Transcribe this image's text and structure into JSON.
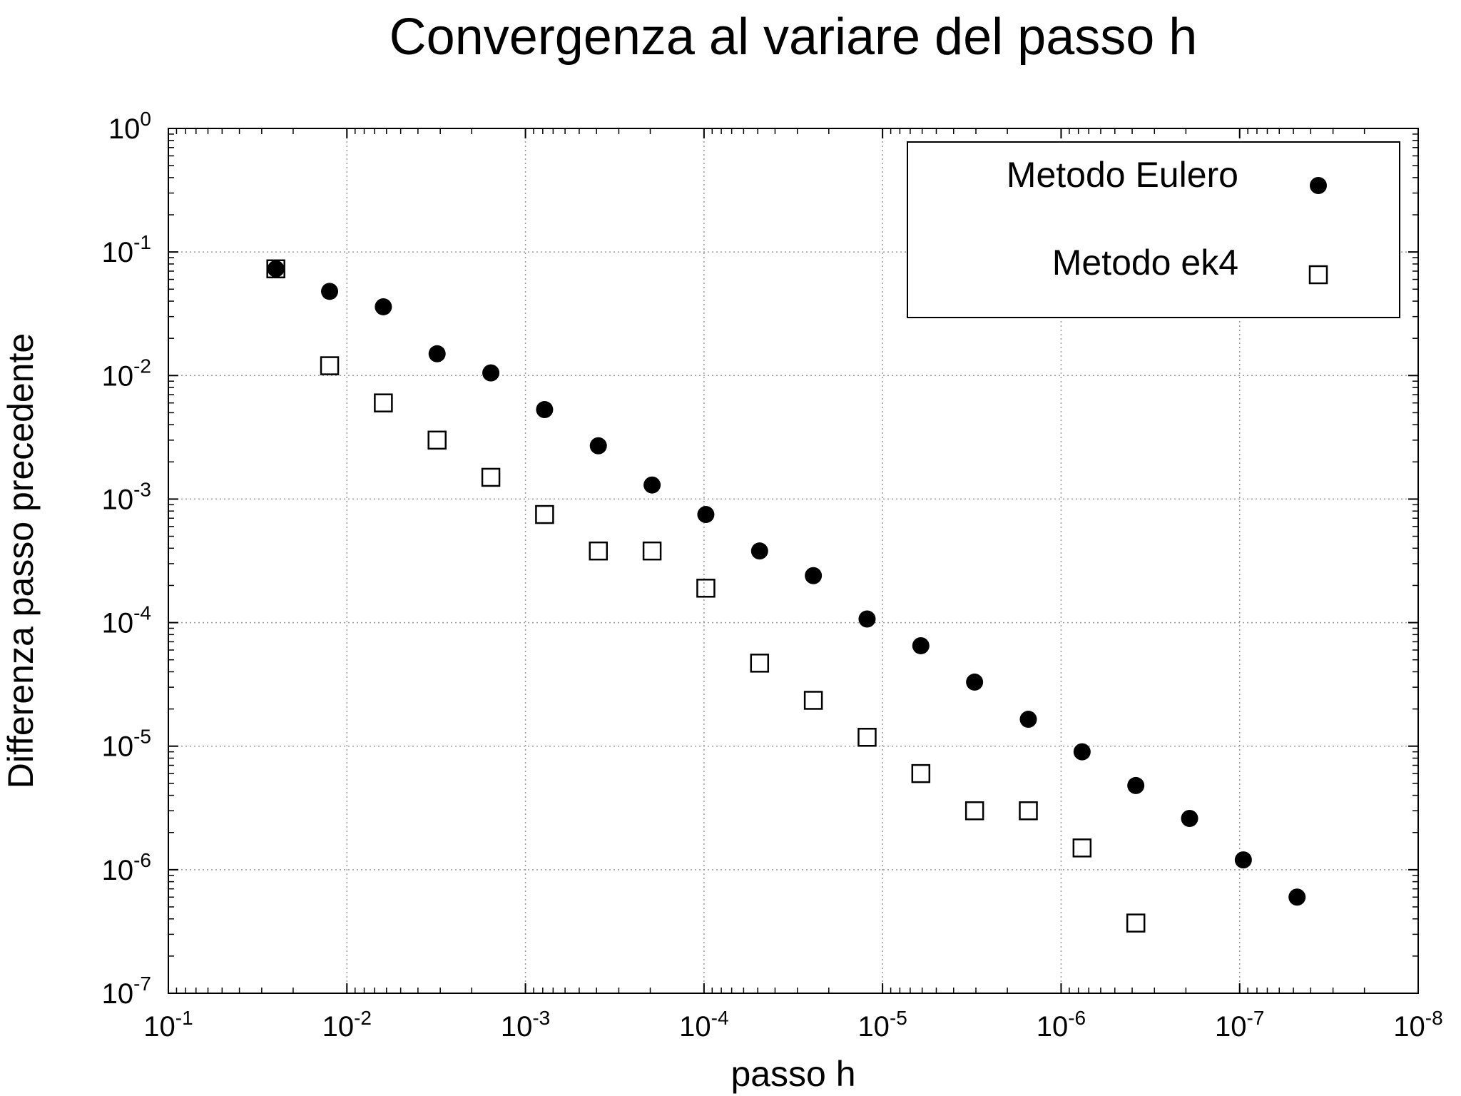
{
  "chart_data": {
    "type": "scatter",
    "title": "Convergenza al variare del passo h",
    "xlabel": "passo h",
    "ylabel": "Differenza passo precedente",
    "xscale": "log",
    "yscale": "log",
    "xaxis_reversed": true,
    "xlim": [
      0.1,
      1e-08
    ],
    "ylim": [
      1e-07,
      1
    ],
    "x_ticks": [
      {
        "base": "10",
        "exp": "-1",
        "value": 0.1
      },
      {
        "base": "10",
        "exp": "-2",
        "value": 0.01
      },
      {
        "base": "10",
        "exp": "-3",
        "value": 0.001
      },
      {
        "base": "10",
        "exp": "-4",
        "value": 0.0001
      },
      {
        "base": "10",
        "exp": "-5",
        "value": 1e-05
      },
      {
        "base": "10",
        "exp": "-6",
        "value": 1e-06
      },
      {
        "base": "10",
        "exp": "-7",
        "value": 1e-07
      },
      {
        "base": "10",
        "exp": "-8",
        "value": 1e-08
      }
    ],
    "y_ticks": [
      {
        "base": "10",
        "exp": "0",
        "value": 1
      },
      {
        "base": "10",
        "exp": "-1",
        "value": 0.1
      },
      {
        "base": "10",
        "exp": "-2",
        "value": 0.01
      },
      {
        "base": "10",
        "exp": "-3",
        "value": 0.001
      },
      {
        "base": "10",
        "exp": "-4",
        "value": 0.0001
      },
      {
        "base": "10",
        "exp": "-5",
        "value": 1e-05
      },
      {
        "base": "10",
        "exp": "-6",
        "value": 1e-06
      },
      {
        "base": "10",
        "exp": "-7",
        "value": 1e-07
      }
    ],
    "grid": true,
    "legend_position": "top-right",
    "series": [
      {
        "name": "Metodo Eulero",
        "marker": "filled-circle",
        "color": "#000000",
        "points": [
          {
            "x": 0.025,
            "y": 0.073
          },
          {
            "x": 0.0125,
            "y": 0.048
          },
          {
            "x": 0.00625,
            "y": 0.036
          },
          {
            "x": 0.003125,
            "y": 0.015
          },
          {
            "x": 0.0015625,
            "y": 0.0105
          },
          {
            "x": 0.00078125,
            "y": 0.0053
          },
          {
            "x": 0.000390625,
            "y": 0.0027
          },
          {
            "x": 0.0001953125,
            "y": 0.0013
          },
          {
            "x": 9.765625e-05,
            "y": 0.00075
          },
          {
            "x": 4.8828125e-05,
            "y": 0.00038
          },
          {
            "x": 2.44140625e-05,
            "y": 0.00024
          },
          {
            "x": 1.220703125e-05,
            "y": 0.000107
          },
          {
            "x": 6.103515625e-06,
            "y": 6.5e-05
          },
          {
            "x": 3.0517578125e-06,
            "y": 3.3e-05
          },
          {
            "x": 1.52587890625e-06,
            "y": 1.65e-05
          },
          {
            "x": 7.62939453125e-07,
            "y": 9e-06
          },
          {
            "x": 3.814697265625e-07,
            "y": 4.8e-06
          },
          {
            "x": 1.9073486328125e-07,
            "y": 2.6e-06
          },
          {
            "x": 9.5367431640625e-08,
            "y": 1.2e-06
          },
          {
            "x": 4.76837158203125e-08,
            "y": 6e-07
          }
        ]
      },
      {
        "name": "Metodo ek4",
        "marker": "open-square",
        "color": "#000000",
        "points": [
          {
            "x": 0.025,
            "y": 0.073
          },
          {
            "x": 0.0125,
            "y": 0.012
          },
          {
            "x": 0.00625,
            "y": 0.006
          },
          {
            "x": 0.003125,
            "y": 0.003
          },
          {
            "x": 0.0015625,
            "y": 0.0015
          },
          {
            "x": 0.00078125,
            "y": 0.00075
          },
          {
            "x": 0.000390625,
            "y": 0.00038
          },
          {
            "x": 0.0001953125,
            "y": 0.00038
          },
          {
            "x": 9.765625e-05,
            "y": 0.00019
          },
          {
            "x": 4.8828125e-05,
            "y": 4.7e-05
          },
          {
            "x": 2.44140625e-05,
            "y": 2.35e-05
          },
          {
            "x": 1.220703125e-05,
            "y": 1.18e-05
          },
          {
            "x": 6.103515625e-06,
            "y": 6e-06
          },
          {
            "x": 3.0517578125e-06,
            "y": 3e-06
          },
          {
            "x": 1.52587890625e-06,
            "y": 3e-06
          },
          {
            "x": 7.62939453125e-07,
            "y": 1.5e-06
          },
          {
            "x": 3.814697265625e-07,
            "y": 3.7e-07
          }
        ]
      }
    ]
  }
}
